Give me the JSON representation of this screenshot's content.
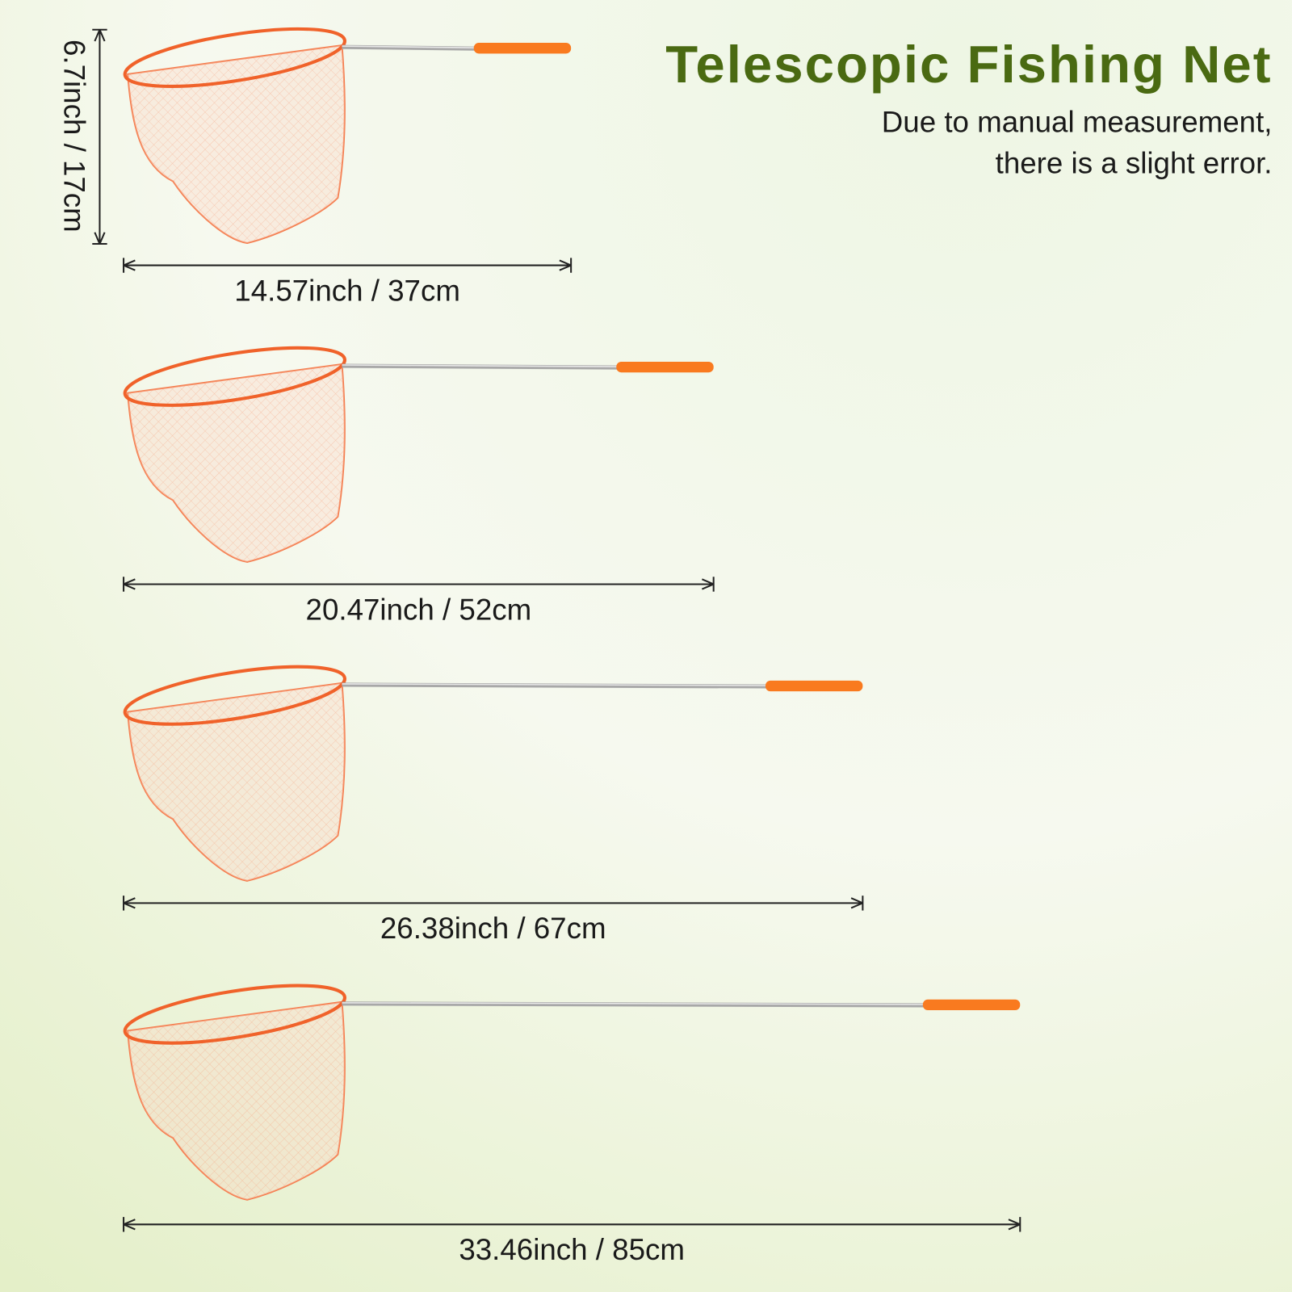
{
  "header": {
    "title": "Telescopic Fishing Net",
    "note": [
      "Due to manual measurement,",
      "there is a slight error."
    ]
  },
  "height_label": "6.7inch / 17cm",
  "lengths": [
    "14.57inch / 37cm",
    "20.47inch / 52cm",
    "26.38inch / 67cm",
    "33.46inch / 85cm"
  ]
}
